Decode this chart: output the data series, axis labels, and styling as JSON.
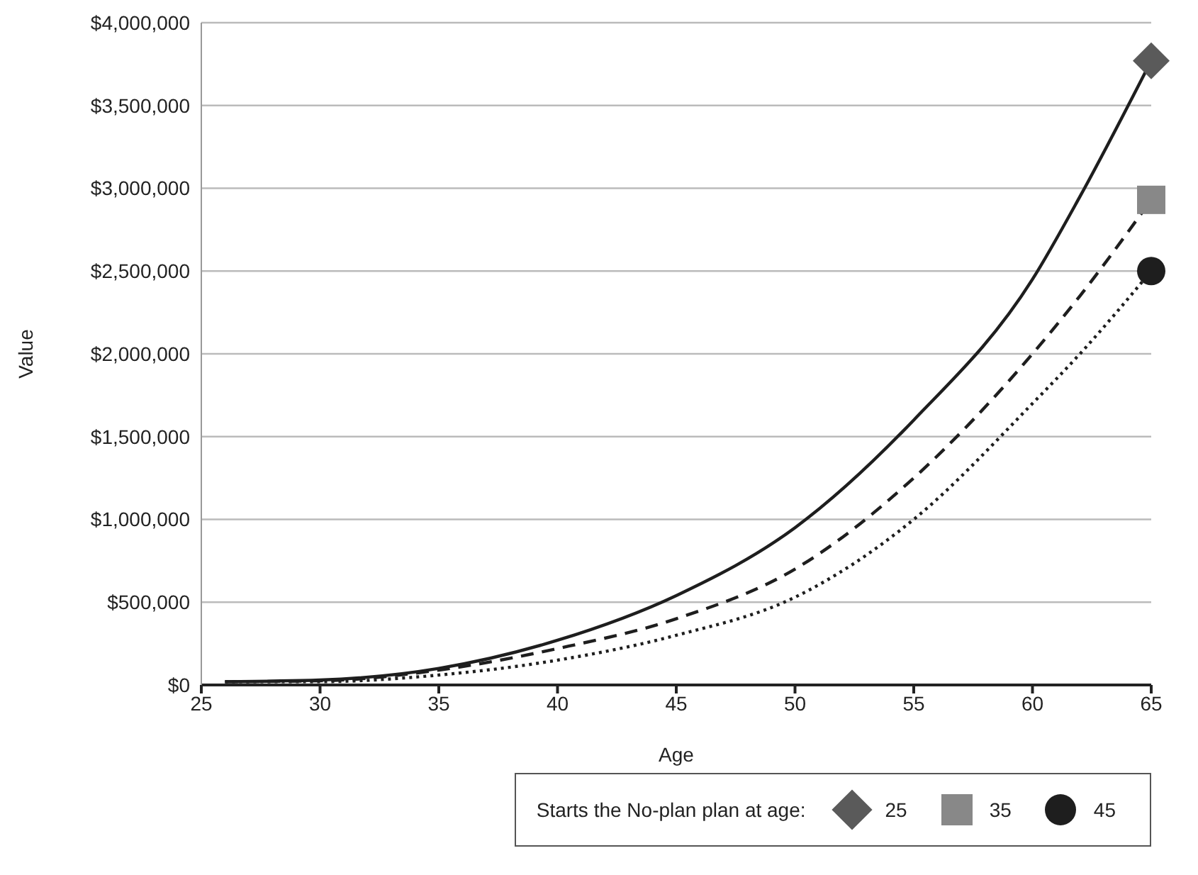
{
  "chart_data": {
    "type": "line",
    "xlabel": "Age",
    "ylabel": "Value",
    "legend_title": "Starts the No-plan plan at age:",
    "legend": "bottom right",
    "grid": "y",
    "xlim": [
      25,
      65
    ],
    "xticks": [
      25,
      30,
      35,
      40,
      45,
      50,
      55,
      60,
      65
    ],
    "ylim": [
      0,
      4000000
    ],
    "yticks": [
      {
        "value": 0,
        "label": "$0"
      },
      {
        "value": 500000,
        "label": "$500,000"
      },
      {
        "value": 1000000,
        "label": "$1,000,000"
      },
      {
        "value": 1500000,
        "label": "$1,500,000"
      },
      {
        "value": 2000000,
        "label": "$2,000,000"
      },
      {
        "value": 2500000,
        "label": "$2,500,000"
      },
      {
        "value": 3000000,
        "label": "$3,000,000"
      },
      {
        "value": 3500000,
        "label": "$3,500,000"
      },
      {
        "value": 4000000,
        "label": "$4,000,000"
      }
    ],
    "x": [
      26,
      30,
      35,
      40,
      45,
      50,
      55,
      60,
      62,
      65
    ],
    "series": [
      {
        "color": "#1e1e1e",
        "line_style": "solid",
        "values": [
          20000,
          30000,
          100000,
          270000,
          540000,
          950000,
          1600000,
          2450000,
          2950000,
          3770000
        ]
      },
      {
        "color": "#1e1e1e",
        "line_style": "dashed",
        "values": [
          20000,
          25000,
          90000,
          220000,
          400000,
          700000,
          1250000,
          2000000,
          2350000,
          2930000
        ]
      },
      {
        "color": "#1e1e1e",
        "line_style": "dotted",
        "values": [
          20000,
          20000,
          60000,
          150000,
          300000,
          530000,
          1000000,
          1700000,
          2000000,
          2500000
        ]
      },
      {
        "type": "scatter",
        "name": "25",
        "color": "#5a5a5a",
        "marker": "diamond",
        "values": [
          null,
          null,
          null,
          null,
          null,
          null,
          null,
          null,
          null,
          3770000
        ]
      },
      {
        "type": "scatter",
        "name": "35",
        "color": "#888888",
        "marker": "square",
        "values": [
          null,
          null,
          null,
          null,
          null,
          null,
          null,
          null,
          null,
          2930000
        ]
      },
      {
        "type": "scatter",
        "name": "45",
        "color": "#1e1e1e",
        "marker": "circle",
        "values": [
          null,
          null,
          null,
          null,
          null,
          null,
          null,
          null,
          null,
          2500000
        ]
      }
    ]
  }
}
